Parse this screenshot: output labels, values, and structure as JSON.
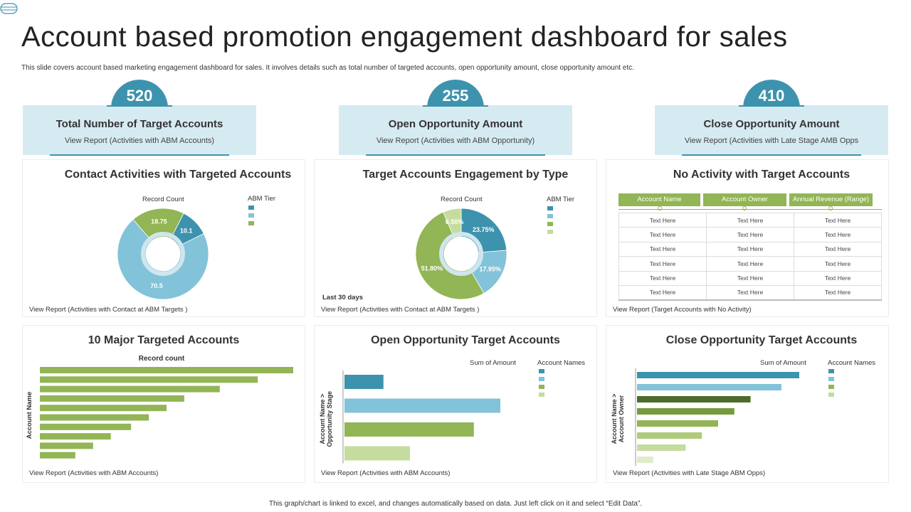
{
  "page": {
    "title": "Account based promotion engagement dashboard for sales",
    "subtitle": "This slide covers account based marketing engagement dashboard for sales. It involves details such as total number of targeted accounts, open opportunity amount,  close opportunity amount etc.",
    "footer": "This graph/chart is linked to excel, and changes automatically based on data. Just left click on it and select “Edit Data”."
  },
  "kpis": [
    {
      "value": "520",
      "label": "Total Number of Target Accounts",
      "link": "View Report (Activities with ABM Accounts)"
    },
    {
      "value": "255",
      "label": "Open Opportunity Amount",
      "link": "View Report (Activities with ABM Opportunity)"
    },
    {
      "value": "410",
      "label": "Close Opportunity Amount",
      "link": "View Report (Activities with Late Stage AMB Opps"
    }
  ],
  "colors": {
    "teal": "#3d93ad",
    "light_blue": "#82c3d9",
    "green": "#92b555",
    "light_green": "#c5dc9e",
    "dark_green": "#4d6b2a",
    "mid_green": "#789a3f",
    "pale_green": "#dfeccb",
    "kpi_box": "#d6eaf2"
  },
  "panels": {
    "contact": {
      "title": "Contact Activities  with  Targeted Accounts",
      "link": "View Report (Activities with Contact at ABM Targets )",
      "chart_title": "Record Count",
      "legend_title": "ABM Tier"
    },
    "engagement": {
      "title": "Target Accounts Engagement by  Type",
      "link": "View  Report (Activities with Contact at ABM Targets )",
      "chart_title": "Record Count",
      "legend_title": "ABM Tier",
      "note": "Last 30 days"
    },
    "no_activity": {
      "title": "No Activity  with  Target Accounts",
      "link": "View Report (Target Accounts with No Activity)"
    },
    "major": {
      "title": "10 Major  Targeted Accounts",
      "link": "View  Report (Activities with ABM  Accounts)"
    },
    "open_opp": {
      "title": "Open Opportunity  Target Accounts",
      "link": "View  Report (Activities with ABM  Accounts)",
      "value_label": "Sum of Amount",
      "legend_title": "Account Names"
    },
    "close_opp": {
      "title": "Close Opportunity  Target Accounts",
      "link": "View  Report (Activities with Late Stage ABM  Opps)",
      "value_label": "Sum of Amount",
      "legend_title": "Account Names"
    }
  },
  "table": {
    "headers": [
      "Account Name",
      "Account Owner",
      "Annual Revenue (Range)"
    ],
    "rows": [
      [
        "Text Here",
        "Text Here",
        "Text Here"
      ],
      [
        "Text Here",
        "Text Here",
        "Text Here"
      ],
      [
        "Text Here",
        "Text Here",
        "Text Here"
      ],
      [
        "Text Here",
        "Text Here",
        "Text Here"
      ],
      [
        "Text Here",
        "Text Here",
        "Text Here"
      ],
      [
        "Text Here",
        "Text Here",
        "Text Here"
      ]
    ]
  },
  "chart_data": [
    {
      "id": "contact",
      "type": "pie",
      "title": "Record Count",
      "legend_title": "ABM Tier",
      "labels": [
        "10.1",
        "70.5",
        "18.75"
      ],
      "values": [
        10.1,
        70.5,
        18.75
      ],
      "colors": [
        "#3d93ad",
        "#82c3d9",
        "#92b555"
      ]
    },
    {
      "id": "engagement",
      "type": "pie",
      "title": "Record Count",
      "legend_title": "ABM Tier",
      "labels": [
        "23.75%",
        "17.95%",
        "51.80%",
        "6.50%"
      ],
      "values": [
        23.75,
        17.95,
        51.8,
        6.5
      ],
      "colors": [
        "#3d93ad",
        "#82c3d9",
        "#92b555",
        "#c5dc9e"
      ]
    },
    {
      "id": "major",
      "type": "bar",
      "title": "Record count",
      "ylabel": "Account Name",
      "values": [
        100,
        86,
        71,
        57,
        50,
        43,
        36,
        28,
        21,
        14
      ],
      "xlim": [
        0,
        100
      ],
      "color": "#92b555"
    },
    {
      "id": "open_opp",
      "type": "bar",
      "title": "Sum of Amount",
      "ylabel": "Account Name > Opportunity Stage",
      "legend_title": "Account Names",
      "values": [
        25,
        100,
        83,
        42
      ],
      "xlim": [
        0,
        100
      ],
      "colors": [
        "#3d93ad",
        "#82c3d9",
        "#92b555",
        "#c5dc9e"
      ]
    },
    {
      "id": "close_opp",
      "type": "bar",
      "title": "Sum of Amount",
      "ylabel": "Account Name > Account Owner",
      "legend_title": "Account Names",
      "values": [
        100,
        89,
        70,
        60,
        50,
        40,
        30,
        10
      ],
      "xlim": [
        0,
        100
      ],
      "colors": [
        "#3d93ad",
        "#82c3d9",
        "#4d6b2a",
        "#789a3f",
        "#92b555",
        "#aecb7a",
        "#c5dc9e",
        "#dfeccb"
      ]
    }
  ]
}
